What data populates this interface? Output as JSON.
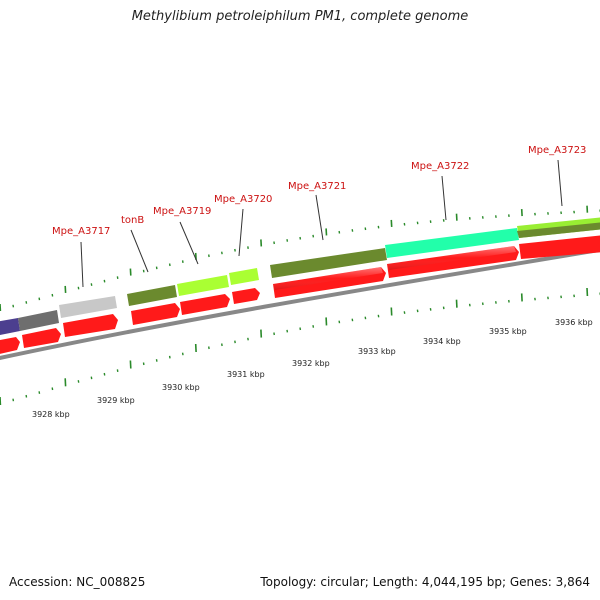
{
  "title": "Methylibium petroleiphilum PM1, complete genome",
  "accession_text": "Accession: NC_008825",
  "topology_text": "Topology: circular; Length: 4,044,195 bp; Genes: 3,864",
  "gene_labels": [
    {
      "id": "a3717",
      "text": "Mpe_A3717"
    },
    {
      "id": "tonb",
      "text": "tonB"
    },
    {
      "id": "a3719",
      "text": "Mpe_A3719"
    },
    {
      "id": "a3720",
      "text": "Mpe_A3720"
    },
    {
      "id": "a3721",
      "text": "Mpe_A3721"
    },
    {
      "id": "a3722",
      "text": "Mpe_A3722"
    },
    {
      "id": "a3723",
      "text": "Mpe_A3723"
    }
  ],
  "kbp_labels": [
    "3928 kbp",
    "3929 kbp",
    "3930 kbp",
    "3931 kbp",
    "3932 kbp",
    "3933 kbp",
    "3934 kbp",
    "3935 kbp",
    "3936 kbp"
  ],
  "colors": {
    "cds": "#ff1a1a",
    "backbone": "#888888",
    "gene_label": "#cc1111",
    "tick": "#2a8a2a"
  }
}
